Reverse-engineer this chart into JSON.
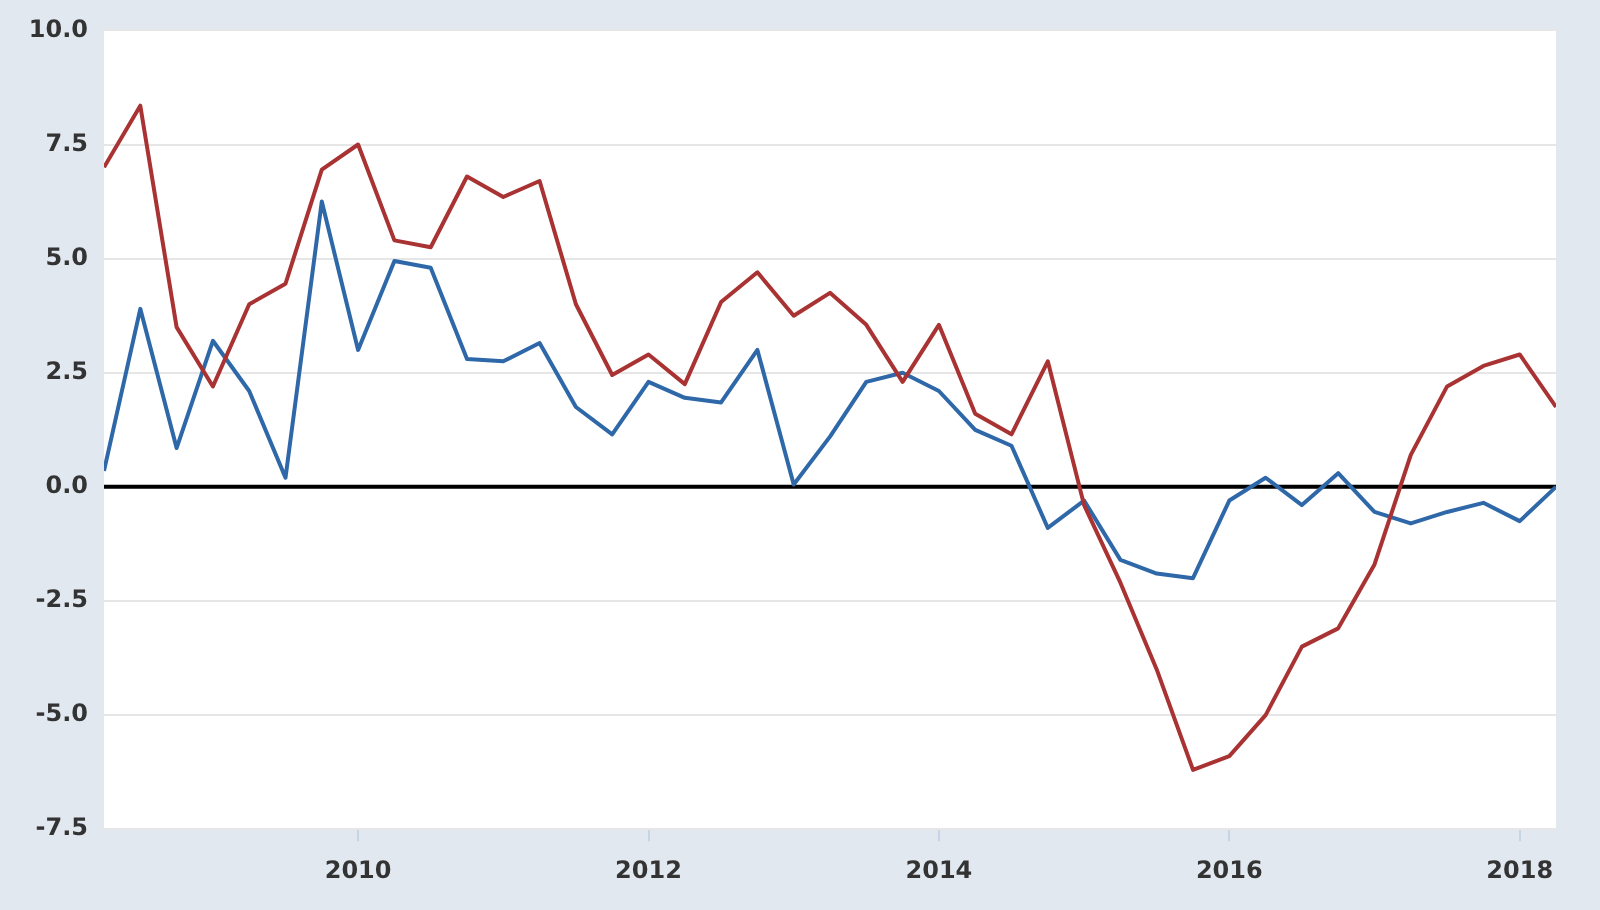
{
  "chart_data": {
    "type": "line",
    "x": [
      "2008-04",
      "2008-07",
      "2008-10",
      "2009-01",
      "2009-04",
      "2009-07",
      "2009-10",
      "2010-01",
      "2010-04",
      "2010-07",
      "2010-10",
      "2011-01",
      "2011-04",
      "2011-07",
      "2011-10",
      "2012-01",
      "2012-04",
      "2012-07",
      "2012-10",
      "2013-01",
      "2013-04",
      "2013-07",
      "2013-10",
      "2014-01",
      "2014-04",
      "2014-07",
      "2014-10",
      "2015-01",
      "2015-04",
      "2015-07",
      "2015-10",
      "2016-01",
      "2016-04",
      "2016-07",
      "2016-10",
      "2017-01",
      "2017-04",
      "2017-07",
      "2017-10",
      "2018-01",
      "2018-04"
    ],
    "series": [
      {
        "color": "#a93232",
        "values": [
          7.0,
          8.35,
          3.5,
          2.2,
          4.0,
          4.45,
          6.95,
          7.5,
          5.4,
          5.25,
          6.8,
          6.35,
          6.7,
          4.0,
          2.45,
          2.9,
          2.25,
          4.05,
          4.7,
          3.75,
          4.25,
          3.55,
          2.3,
          3.55,
          1.6,
          1.15,
          2.75,
          -0.4,
          -2.1,
          -4.0,
          -6.2,
          -5.9,
          -5.0,
          -3.5,
          -3.1,
          -1.7,
          0.7,
          2.2,
          2.65,
          2.9,
          1.75
        ]
      },
      {
        "color": "#2f68a8",
        "values": [
          0.35,
          3.9,
          0.85,
          3.2,
          2.1,
          0.2,
          6.25,
          3.0,
          4.95,
          4.8,
          2.8,
          2.75,
          3.15,
          1.75,
          1.15,
          2.3,
          1.95,
          1.85,
          3.0,
          0.05,
          1.1,
          2.3,
          2.5,
          2.1,
          1.25,
          0.9,
          -0.9,
          -0.3,
          -1.6,
          -1.9,
          -2.0,
          -0.3,
          0.2,
          -0.4,
          0.3,
          -0.55,
          -0.8,
          -0.55,
          -0.35,
          -0.75,
          0.0
        ]
      }
    ],
    "xlim": [
      "2008-04",
      "2018-04"
    ],
    "xticks": [
      "2010",
      "2012",
      "2014",
      "2016",
      "2018"
    ],
    "ylim": [
      -7.5,
      10
    ],
    "yticks": [
      {
        "value": -7.5,
        "label": "-7.5"
      },
      {
        "value": -5,
        "label": "-5.0"
      },
      {
        "value": -2.5,
        "label": "-2.5"
      },
      {
        "value": 0,
        "label": "0.0"
      },
      {
        "value": 2.5,
        "label": "2.5"
      },
      {
        "value": 5,
        "label": "5.0"
      },
      {
        "value": 7.5,
        "label": "7.5"
      },
      {
        "value": 10,
        "label": "10.0"
      }
    ],
    "ref_lines": [
      {
        "axis": "y",
        "value": 0,
        "color": "#000000"
      }
    ],
    "grid": "y",
    "legend": false,
    "marker": "none",
    "line_style": "solid"
  }
}
